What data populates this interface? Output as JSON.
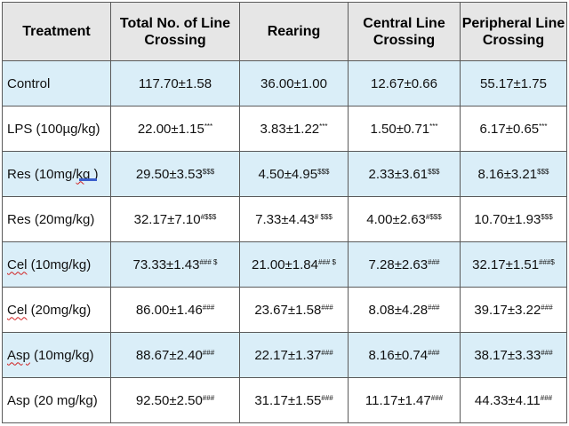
{
  "table": {
    "headers": [
      "Treatment",
      "Total No. of Line Crossing",
      "Rearing",
      "Central Line Crossing",
      "Peripheral Line Crossing"
    ],
    "rows": [
      {
        "treatment": {
          "prefix": "",
          "underlined": "",
          "suffix": "Control"
        },
        "cells": [
          {
            "value": "117.70±1.58",
            "sig": ""
          },
          {
            "value": "36.00±1.00",
            "sig": ""
          },
          {
            "value": "12.67±0.66",
            "sig": ""
          },
          {
            "value": "55.17±1.75",
            "sig": ""
          }
        ]
      },
      {
        "treatment": {
          "prefix": "",
          "underlined": "",
          "suffix": "LPS (100µg/kg)"
        },
        "cells": [
          {
            "value": "22.00±1.15",
            "sig": "***"
          },
          {
            "value": "3.83±1.22",
            "sig": "***"
          },
          {
            "value": "1.50±0.71",
            "sig": "***"
          },
          {
            "value": "6.17±0.65",
            "sig": "***"
          }
        ]
      },
      {
        "treatment": {
          "prefix": "Res (10mg/",
          "underlined": "kg",
          "suffix": " )"
        },
        "cells": [
          {
            "value": "29.50±3.53",
            "sig": "$$$"
          },
          {
            "value": "4.50±4.95",
            "sig": "$$$"
          },
          {
            "value": "2.33±3.61",
            "sig": "$$$"
          },
          {
            "value": "8.16±3.21",
            "sig": "$$$"
          }
        ]
      },
      {
        "treatment": {
          "prefix": "",
          "underlined": "",
          "suffix": "Res (20mg/kg)"
        },
        "cells": [
          {
            "value": "32.17±7.10",
            "sig": "#$$$"
          },
          {
            "value": "7.33±4.43",
            "sig": "# $$$"
          },
          {
            "value": "4.00±2.63",
            "sig": "#$$$"
          },
          {
            "value": "10.70±1.93",
            "sig": "$$$"
          }
        ]
      },
      {
        "treatment": {
          "prefix": "",
          "underlined": "Cel",
          "suffix": " (10mg/kg)"
        },
        "cells": [
          {
            "value": "73.33±1.43",
            "sig": "### $"
          },
          {
            "value": "21.00±1.84",
            "sig": "### $"
          },
          {
            "value": "7.28±2.63",
            "sig": "###"
          },
          {
            "value": "32.17±1.51",
            "sig": "###$"
          }
        ]
      },
      {
        "treatment": {
          "prefix": "",
          "underlined": "Cel",
          "suffix": " (20mg/kg)"
        },
        "cells": [
          {
            "value": "86.00±1.46",
            "sig": "###"
          },
          {
            "value": "23.67±1.58",
            "sig": "###"
          },
          {
            "value": "8.08±4.28",
            "sig": "###"
          },
          {
            "value": "39.17±3.22",
            "sig": "###"
          }
        ]
      },
      {
        "treatment": {
          "prefix": "",
          "underlined": "Asp",
          "suffix": " (10mg/kg)"
        },
        "cells": [
          {
            "value": "88.67±2.40",
            "sig": "###"
          },
          {
            "value": "22.17±1.37",
            "sig": "###"
          },
          {
            "value": "8.16±0.74",
            "sig": "###"
          },
          {
            "value": "38.17±3.33",
            "sig": "###"
          }
        ]
      },
      {
        "treatment": {
          "prefix": "",
          "underlined": "",
          "suffix": "Asp (20 mg/kg)"
        },
        "cells": [
          {
            "value": "92.50±2.50",
            "sig": "###"
          },
          {
            "value": "31.17±1.55",
            "sig": "###"
          },
          {
            "value": "11.17±1.47",
            "sig": "###"
          },
          {
            "value": "44.33±4.11",
            "sig": "###"
          }
        ]
      }
    ]
  },
  "colors": {
    "header_bg": "#e6e6e6",
    "stripe_bg": "#daeef8",
    "plain_bg": "#ffffff",
    "border": "#5a5a5a",
    "spellcheck_underline": "#d02020"
  }
}
